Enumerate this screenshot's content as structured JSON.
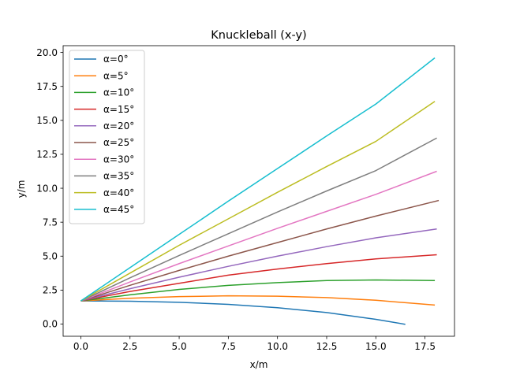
{
  "chart_data": {
    "type": "line",
    "title": "Knuckleball (x-y)",
    "xlabel": "x/m",
    "ylabel": "y/m",
    "xlim": [
      -0.9,
      19.0
    ],
    "ylim": [
      -0.9,
      20.5
    ],
    "xticks": [
      0.0,
      2.5,
      5.0,
      7.5,
      10.0,
      12.5,
      15.0,
      17.5
    ],
    "xtick_labels": [
      "0.0",
      "2.5",
      "5.0",
      "7.5",
      "10.0",
      "12.5",
      "15.0",
      "17.5"
    ],
    "yticks": [
      0.0,
      2.5,
      5.0,
      7.5,
      10.0,
      12.5,
      15.0,
      17.5,
      20.0
    ],
    "ytick_labels": [
      "0.0",
      "2.5",
      "5.0",
      "7.5",
      "10.0",
      "12.5",
      "15.0",
      "17.5",
      "20.0"
    ],
    "grid": false,
    "legend_position": "top-left",
    "series": [
      {
        "name": "α=0°",
        "color": "#1f77b4",
        "x": [
          0,
          2.5,
          5,
          7.5,
          10,
          12.5,
          15,
          16.5
        ],
        "y": [
          1.7,
          1.68,
          1.6,
          1.45,
          1.2,
          0.85,
          0.35,
          -0.02
        ]
      },
      {
        "name": "α=5°",
        "color": "#ff7f0e",
        "x": [
          0,
          2.5,
          5,
          7.5,
          10,
          12.5,
          15,
          18
        ],
        "y": [
          1.7,
          1.9,
          2.02,
          2.08,
          2.05,
          1.95,
          1.75,
          1.4
        ]
      },
      {
        "name": "α=10°",
        "color": "#2ca02c",
        "x": [
          0,
          2.5,
          5,
          7.5,
          10,
          12.5,
          15,
          18
        ],
        "y": [
          1.7,
          2.15,
          2.55,
          2.85,
          3.05,
          3.2,
          3.25,
          3.2
        ]
      },
      {
        "name": "α=15°",
        "color": "#d62728",
        "x": [
          0,
          2.5,
          5,
          7.5,
          10,
          12.5,
          15,
          18.1
        ],
        "y": [
          1.7,
          2.4,
          3.0,
          3.6,
          4.05,
          4.45,
          4.8,
          5.1
        ]
      },
      {
        "name": "α=20°",
        "color": "#9467bd",
        "x": [
          0,
          2.5,
          5,
          7.5,
          10,
          12.5,
          15,
          18.1
        ],
        "y": [
          1.7,
          2.6,
          3.45,
          4.25,
          5.0,
          5.7,
          6.35,
          7.0
        ]
      },
      {
        "name": "α=25°",
        "color": "#8c564b",
        "x": [
          0,
          2.5,
          5,
          7.5,
          10,
          12.5,
          15,
          18.2
        ],
        "y": [
          1.7,
          2.85,
          3.95,
          5.0,
          6.0,
          7.0,
          7.95,
          9.1
        ]
      },
      {
        "name": "α=30°",
        "color": "#e377c2",
        "x": [
          0,
          2.5,
          5,
          7.5,
          10,
          12.5,
          15,
          18.1
        ],
        "y": [
          1.7,
          3.1,
          4.45,
          5.75,
          7.05,
          8.3,
          9.55,
          11.25
        ]
      },
      {
        "name": "α=35°",
        "color": "#7f7f7f",
        "x": [
          0,
          2.5,
          5,
          7.5,
          10,
          12.5,
          15,
          18.1
        ],
        "y": [
          1.7,
          3.4,
          5.05,
          6.65,
          8.25,
          9.8,
          11.3,
          13.7
        ]
      },
      {
        "name": "α=40°",
        "color": "#bcbd22",
        "x": [
          0,
          2.5,
          5,
          7.5,
          10,
          12.5,
          15,
          18.0
        ],
        "y": [
          1.7,
          3.75,
          5.8,
          7.75,
          9.7,
          11.6,
          13.45,
          16.4
        ]
      },
      {
        "name": "α=45°",
        "color": "#17becf",
        "x": [
          0,
          2.5,
          5,
          7.5,
          10,
          12.5,
          15,
          18.0
        ],
        "y": [
          1.7,
          4.15,
          6.6,
          9.05,
          11.45,
          13.85,
          16.2,
          19.6
        ]
      }
    ]
  }
}
